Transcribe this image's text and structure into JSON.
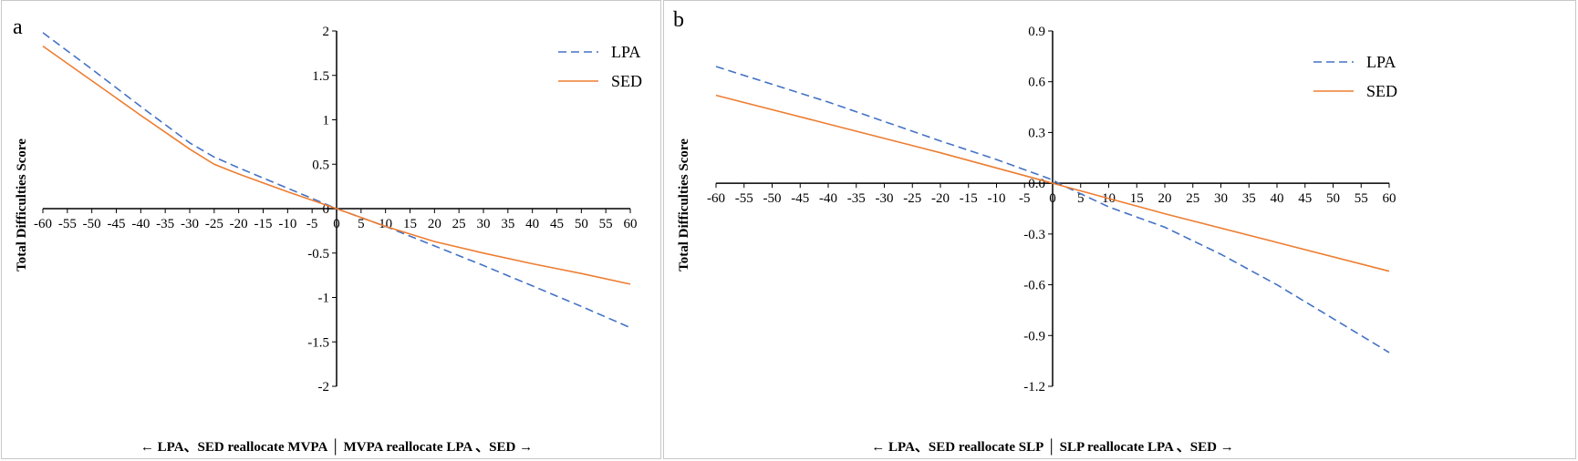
{
  "chart_data": [
    {
      "panel": "a",
      "type": "line",
      "x": [
        -60,
        60
      ],
      "xticks": [
        -60,
        -55,
        -50,
        -45,
        -40,
        -35,
        -30,
        -25,
        -20,
        -15,
        -10,
        -5,
        0,
        5,
        10,
        15,
        20,
        25,
        30,
        35,
        40,
        45,
        50,
        55,
        60
      ],
      "xlim": [
        -60,
        60
      ],
      "ylim": [
        -2,
        2
      ],
      "yticks": [
        -2,
        -1.5,
        -1,
        -0.5,
        0,
        0.5,
        1,
        1.5,
        2
      ],
      "ylabel": "Total Difficulties Score",
      "xlabel": "← LPA、SED reallocate MVPA │ MVPA reallocate LPA 、SED →",
      "legend_position": "top-right",
      "series": [
        {
          "name": "LPA",
          "style": "dashed",
          "color": "#4472C4",
          "points": [
            [
              -60,
              1.98
            ],
            [
              -50,
              1.57
            ],
            [
              -40,
              1.15
            ],
            [
              -30,
              0.74
            ],
            [
              -25,
              0.58
            ],
            [
              -20,
              0.46
            ],
            [
              -10,
              0.23
            ],
            [
              0,
              0.0
            ],
            [
              10,
              -0.2
            ],
            [
              20,
              -0.42
            ],
            [
              30,
              -0.64
            ],
            [
              40,
              -0.87
            ],
            [
              50,
              -1.1
            ],
            [
              60,
              -1.34
            ]
          ]
        },
        {
          "name": "SED",
          "style": "solid",
          "color": "#ED7D31",
          "points": [
            [
              -60,
              1.83
            ],
            [
              -50,
              1.44
            ],
            [
              -40,
              1.05
            ],
            [
              -30,
              0.67
            ],
            [
              -25,
              0.5
            ],
            [
              -20,
              0.39
            ],
            [
              -10,
              0.19
            ],
            [
              0,
              0.0
            ],
            [
              10,
              -0.2
            ],
            [
              20,
              -0.37
            ],
            [
              30,
              -0.5
            ],
            [
              40,
              -0.62
            ],
            [
              50,
              -0.73
            ],
            [
              60,
              -0.85
            ]
          ]
        }
      ]
    },
    {
      "panel": "b",
      "type": "line",
      "x": [
        -60,
        60
      ],
      "xticks": [
        -60,
        -55,
        -50,
        -45,
        -40,
        -35,
        -30,
        -25,
        -20,
        -15,
        -10,
        -5,
        0,
        5,
        10,
        15,
        20,
        25,
        30,
        35,
        40,
        45,
        50,
        55,
        60
      ],
      "xlim": [
        -60,
        60
      ],
      "ylim": [
        -1.2,
        0.9
      ],
      "yticks": [
        -1.2,
        -0.9,
        -0.6,
        -0.3,
        0,
        0.3,
        0.6,
        0.9
      ],
      "ylabel": "Total Difficulties Score",
      "xlabel": "← LPA、SED reallocate SLP │ SLP reallocate LPA 、SED →",
      "legend_position": "top-right",
      "series": [
        {
          "name": "LPA",
          "style": "dashed",
          "color": "#4472C4",
          "points": [
            [
              -60,
              0.69
            ],
            [
              -40,
              0.48
            ],
            [
              -20,
              0.25
            ],
            [
              -10,
              0.14
            ],
            [
              0,
              0.02
            ],
            [
              1,
              0.0
            ],
            [
              10,
              -0.14
            ],
            [
              20,
              -0.26
            ],
            [
              30,
              -0.42
            ],
            [
              40,
              -0.6
            ],
            [
              50,
              -0.8
            ],
            [
              60,
              -1.0
            ]
          ]
        },
        {
          "name": "SED",
          "style": "solid",
          "color": "#ED7D31",
          "points": [
            [
              -60,
              0.52
            ],
            [
              -40,
              0.35
            ],
            [
              -20,
              0.18
            ],
            [
              0,
              0.0
            ],
            [
              20,
              -0.18
            ],
            [
              40,
              -0.35
            ],
            [
              60,
              -0.52
            ]
          ]
        }
      ]
    }
  ],
  "panels": {
    "a": {
      "letter": "a"
    },
    "b": {
      "letter": "b"
    }
  }
}
